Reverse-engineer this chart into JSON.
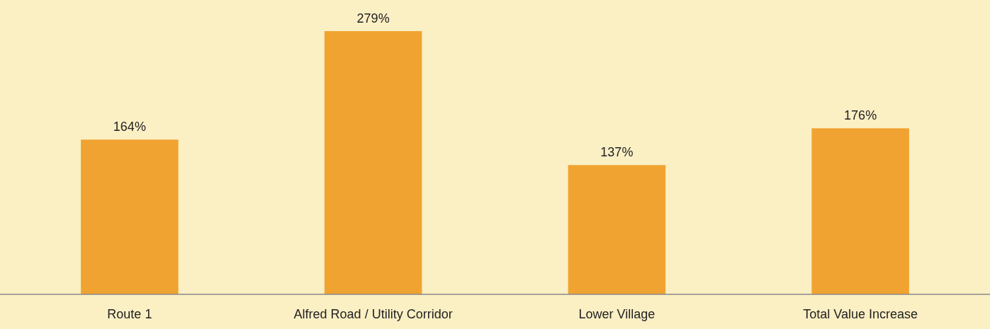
{
  "chart_data": {
    "type": "bar",
    "categories": [
      "Route 1",
      "Alfred Road / Utility Corridor",
      "Lower Village",
      "Total Value Increase"
    ],
    "values": [
      164,
      279,
      137,
      176
    ],
    "color": "#f0a330",
    "value_labels": [
      "164%",
      "279%",
      "137%",
      "176%"
    ]
  }
}
